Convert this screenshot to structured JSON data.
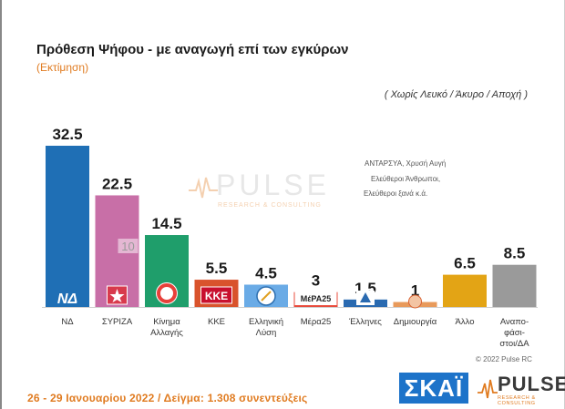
{
  "header": {
    "title": "Πρόθεση Ψήφου - με αναγωγή επί των εγκύρων",
    "subtitle": "(Εκτίμηση)",
    "note": "( Χωρίς Λευκό / Άκυρο / Αποχή )"
  },
  "chart_data": {
    "type": "bar",
    "title": "Πρόθεση Ψήφου - με αναγωγή επί των εγκύρων",
    "subtitle": "(Εκτίμηση)",
    "categories": [
      "ΝΔ",
      "ΣΥΡΙΖΑ",
      "Κίνημα Αλλαγής",
      "ΚΚΕ",
      "Ελληνική Λύση",
      "Μέρα25",
      "Έλληνες",
      "Δημιουργία",
      "Άλλο",
      "Αναποφάσιστοι/ΔΑ"
    ],
    "category_lines": [
      [
        "ΝΔ"
      ],
      [
        "ΣΥΡΙΖΑ"
      ],
      [
        "Κίνημα",
        "Αλλαγής"
      ],
      [
        "ΚΚΕ"
      ],
      [
        "Ελληνική",
        "Λύση"
      ],
      [
        "Μέρα25"
      ],
      [
        "Έλληνες"
      ],
      [
        "Δημιουργία"
      ],
      [
        "Άλλο"
      ],
      [
        "Αναπο-",
        "φάσι-",
        "στοι/ΔΑ"
      ]
    ],
    "values": [
      32.5,
      22.5,
      14.5,
      5.5,
      4.5,
      3,
      1.5,
      1,
      6.5,
      8.5
    ],
    "value_labels": [
      "32.5",
      "22.5",
      "14.5",
      "5.5",
      "4.5",
      "3",
      "1.5",
      "1",
      "6.5",
      "8.5"
    ],
    "colors": [
      "#1f6fb5",
      "#c86fa7",
      "#1f9e6b",
      "#d9532c",
      "#6aabe6",
      "#e84c3d",
      "#2a6ab0",
      "#e89a5b",
      "#e3a415",
      "#9a9a9a"
    ],
    "ylim": [
      0,
      35
    ],
    "grid": false,
    "legend": "none"
  },
  "annotations": {
    "syriza_inner": "10",
    "other_parties": [
      "ΑΝΤΑΡΣΥΑ, Χρυσή Αυγή",
      "Ελεύθεροι Άνθρωποι,",
      "Ελεύθεροι ξανά      κ.ά."
    ]
  },
  "footer": {
    "fieldwork": "26 - 29 Ιανουαρίου 2022 / Δείγμα: 1.308 συνεντεύξεις",
    "copyright": "© 2022 Pulse RC"
  },
  "logos": {
    "pulse_name": "PULSE",
    "pulse_sub": "RESEARCH & CONSULTING",
    "skai": "ΣΚΑΪ",
    "nd": "ΝΔ",
    "kke": "ΚΚΕ",
    "mera25": "ΜέΡΑ25"
  }
}
